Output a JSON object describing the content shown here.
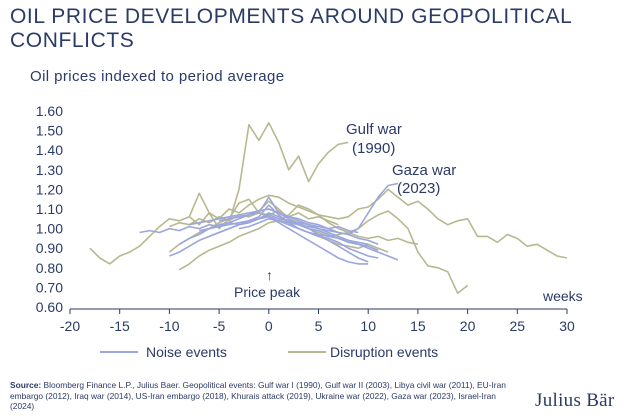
{
  "chart_data": {
    "type": "line",
    "title": "OIL PRICE DEVELOPMENTS AROUND GEOPOLITICAL CONFLICTS",
    "subtitle": "Oil prices indexed to period average",
    "xlabel": "weeks",
    "ylabel": "",
    "xlim": [
      -20,
      30
    ],
    "ylim": [
      0.6,
      1.6
    ],
    "xticks": [
      -20,
      -15,
      -10,
      -5,
      0,
      5,
      10,
      15,
      20,
      25,
      30
    ],
    "yticks": [
      0.6,
      0.7,
      0.8,
      0.9,
      1.0,
      1.1,
      1.2,
      1.3,
      1.4,
      1.5,
      1.6
    ],
    "grid": false,
    "legend": "bottom",
    "legend_entries": [
      {
        "label": "Noise events",
        "color": "#9ba6dc"
      },
      {
        "label": "Disruption events",
        "color": "#b8b890"
      }
    ],
    "annotations": {
      "gulf_war": [
        "Gulf war",
        "(1990)"
      ],
      "gaza_war": [
        "Gaza war",
        "(2023)"
      ],
      "price_peak": "Price peak",
      "price_peak_arrow": "↑"
    },
    "series": [
      {
        "group": "disruption",
        "x": [
          -18,
          -17,
          -16,
          -15,
          -14,
          -13,
          -12,
          -11,
          -10,
          -9,
          -8,
          -7,
          -6,
          -5,
          -4,
          -3,
          -2,
          -1,
          0,
          1,
          2,
          3,
          4,
          5,
          6,
          7,
          8,
          9,
          10,
          11,
          12,
          13,
          14,
          15,
          16,
          17,
          18,
          19,
          20,
          21,
          22,
          23,
          24,
          25,
          26,
          27,
          28,
          29,
          30
        ],
        "y": [
          0.9,
          0.85,
          0.82,
          0.86,
          0.88,
          0.91,
          0.96,
          1.01,
          1.05,
          1.04,
          1.06,
          1.02,
          1.08,
          1.05,
          1.1,
          1.08,
          1.12,
          1.15,
          1.17,
          1.16,
          1.13,
          1.11,
          1.09,
          1.07,
          1.06,
          1.05,
          1.06,
          1.1,
          1.11,
          1.15,
          1.2,
          1.16,
          1.12,
          1.14,
          1.1,
          1.05,
          1.02,
          1.04,
          1.05,
          0.96,
          0.96,
          0.93,
          0.97,
          0.95,
          0.91,
          0.92,
          0.89,
          0.86,
          0.85
        ]
      },
      {
        "group": "disruption",
        "x": [
          -10,
          -9,
          -8,
          -7,
          -6,
          -5,
          -4,
          -3,
          -2,
          -1,
          0,
          1,
          2,
          3,
          4,
          5,
          6,
          7,
          8,
          9,
          10,
          11,
          12,
          13,
          14,
          15,
          16,
          17,
          18,
          19,
          20
        ],
        "y": [
          0.88,
          0.92,
          0.95,
          0.98,
          1.0,
          1.03,
          1.05,
          1.06,
          1.07,
          1.09,
          1.14,
          1.1,
          1.05,
          1.03,
          1.0,
          0.98,
          0.96,
          0.97,
          0.98,
          1.0,
          1.04,
          1.07,
          1.09,
          1.05,
          1.0,
          0.88,
          0.81,
          0.8,
          0.78,
          0.67,
          0.71
        ]
      },
      {
        "group": "disruption",
        "x": [
          -9,
          -8,
          -7,
          -6,
          -5,
          -4,
          -3,
          -2,
          -1,
          0,
          1,
          2,
          3,
          4,
          5,
          6,
          7,
          8,
          9,
          10,
          11,
          12
        ],
        "y": [
          0.79,
          0.82,
          0.86,
          0.89,
          0.91,
          0.93,
          0.96,
          0.98,
          1.0,
          1.03,
          1.04,
          1.02,
          1.0,
          0.98,
          0.96,
          0.94,
          0.92,
          0.91,
          0.9,
          0.92,
          0.9,
          0.88
        ]
      },
      {
        "group": "disruption",
        "x": [
          -10,
          -9,
          -8,
          -7,
          -6,
          -5,
          -4,
          -3,
          -2,
          -1,
          0,
          1,
          2,
          3,
          4,
          5,
          6,
          7
        ],
        "y": [
          1.01,
          1.03,
          1.02,
          1.05,
          1.03,
          1.06,
          1.04,
          1.07,
          1.06,
          1.08,
          1.07,
          1.09,
          1.06,
          1.08,
          1.05,
          1.06,
          1.04,
          1.02
        ]
      },
      {
        "group": "disruption",
        "x": [
          -8,
          -7,
          -6,
          -5,
          -4,
          -3,
          -2,
          -1,
          0,
          1,
          2,
          3,
          4,
          5,
          6,
          7,
          8,
          9,
          10,
          11,
          12,
          13,
          14,
          15
        ],
        "y": [
          1.06,
          1.18,
          1.08,
          1.0,
          1.05,
          1.13,
          1.15,
          1.08,
          1.06,
          1.04,
          1.07,
          1.12,
          1.1,
          1.07,
          1.03,
          1.0,
          0.98,
          0.96,
          0.95,
          0.96,
          0.94,
          0.95,
          0.93,
          0.92
        ]
      },
      {
        "group": "disruption",
        "x": [
          -4,
          -3,
          -2,
          -1,
          0,
          1,
          2,
          3,
          4,
          5,
          6,
          7,
          8
        ],
        "y": [
          1.03,
          1.2,
          1.53,
          1.45,
          1.54,
          1.44,
          1.3,
          1.37,
          1.24,
          1.33,
          1.39,
          1.43,
          1.44
        ]
      },
      {
        "group": "noise",
        "x": [
          -13,
          -12,
          -11,
          -10,
          -9,
          -8,
          -7,
          -6,
          -5,
          -4,
          -3,
          -2,
          -1,
          0,
          1,
          2,
          3,
          4,
          5,
          6,
          7,
          8,
          9,
          10,
          11,
          12,
          13
        ],
        "y": [
          0.98,
          0.99,
          0.98,
          1.0,
          0.99,
          1.01,
          1.0,
          1.02,
          1.01,
          1.03,
          1.02,
          1.03,
          1.05,
          1.07,
          1.05,
          1.04,
          1.02,
          1.0,
          0.99,
          0.97,
          0.95,
          0.93,
          0.92,
          0.9,
          0.88,
          0.86,
          0.84
        ]
      },
      {
        "group": "noise",
        "x": [
          -10,
          -9,
          -8,
          -7,
          -6,
          -5,
          -4,
          -3,
          -2,
          -1,
          0,
          1,
          2,
          3,
          4,
          5,
          6,
          7,
          8,
          9,
          10,
          11
        ],
        "y": [
          0.86,
          0.88,
          0.91,
          0.94,
          0.96,
          0.98,
          1.0,
          1.02,
          1.04,
          1.06,
          1.12,
          1.07,
          1.03,
          1.0,
          0.98,
          0.96,
          0.95,
          0.93,
          0.9,
          0.88,
          0.86,
          0.85
        ]
      },
      {
        "group": "noise",
        "x": [
          -9,
          -8,
          -7,
          -6,
          -5,
          -4,
          -3,
          -2,
          -1,
          0,
          1,
          2,
          3,
          4,
          5,
          6,
          7,
          8,
          9,
          10
        ],
        "y": [
          0.92,
          0.95,
          0.97,
          1.0,
          1.02,
          1.03,
          1.05,
          1.07,
          1.09,
          1.1,
          1.08,
          1.05,
          1.02,
          1.0,
          0.97,
          0.94,
          0.91,
          0.88,
          0.85,
          0.83
        ]
      },
      {
        "group": "noise",
        "x": [
          -8,
          -7,
          -6,
          -5,
          -4,
          -3,
          -2,
          -1,
          0,
          1,
          2,
          3,
          4,
          5,
          6,
          7,
          8,
          9,
          10,
          11
        ],
        "y": [
          1.02,
          1.03,
          1.04,
          1.05,
          1.06,
          1.07,
          1.08,
          1.09,
          1.1,
          1.08,
          1.06,
          1.04,
          1.02,
          1.0,
          0.98,
          0.96,
          0.94,
          0.92,
          0.91,
          0.89
        ]
      },
      {
        "group": "noise",
        "x": [
          -7,
          -6,
          -5,
          -4,
          -3,
          -2,
          -1,
          0,
          1,
          2,
          3,
          4,
          5,
          6,
          7,
          8,
          9,
          10
        ],
        "y": [
          0.99,
          1.0,
          1.01,
          1.02,
          1.03,
          1.04,
          1.05,
          1.06,
          1.04,
          1.02,
          1.0,
          0.98,
          0.97,
          0.96,
          0.95,
          0.94,
          0.93,
          0.92
        ]
      },
      {
        "group": "noise",
        "x": [
          -6,
          -5,
          -4,
          -3,
          -2,
          -1,
          0,
          1,
          2,
          3,
          4,
          5,
          6,
          7,
          8,
          9
        ],
        "y": [
          0.96,
          0.98,
          1.0,
          1.02,
          1.03,
          1.05,
          1.08,
          1.06,
          1.04,
          1.03,
          1.02,
          1.01,
          1.0,
          1.01,
          0.99,
          0.98
        ]
      },
      {
        "group": "noise",
        "x": [
          -5,
          -4,
          -3,
          -2,
          -1,
          0,
          1,
          2,
          3,
          4,
          5,
          6,
          7,
          8,
          9,
          10,
          11
        ],
        "y": [
          1.04,
          1.05,
          1.06,
          1.07,
          1.08,
          1.16,
          1.08,
          1.06,
          1.05,
          1.03,
          1.02,
          1.0,
          0.98,
          0.97,
          0.95,
          0.94,
          0.92
        ]
      },
      {
        "group": "noise",
        "x": [
          -3,
          -2,
          -1,
          0,
          1,
          2,
          3,
          4,
          5,
          6,
          7,
          8,
          9,
          10,
          11,
          12,
          13
        ],
        "y": [
          1.0,
          1.01,
          1.03,
          1.05,
          1.04,
          1.03,
          1.02,
          1.01,
          1.0,
          0.99,
          0.98,
          0.97,
          1.0,
          1.08,
          1.16,
          1.22,
          1.23
        ]
      },
      {
        "group": "noise",
        "x": [
          0,
          1,
          2,
          3,
          4,
          5,
          6,
          7,
          8,
          9,
          10
        ],
        "y": [
          1.06,
          1.03,
          1.0,
          0.97,
          0.94,
          0.91,
          0.88,
          0.85,
          0.83,
          0.82,
          0.82
        ]
      }
    ]
  },
  "source": {
    "label": "Source:",
    "text": "Bloomberg Finance L.P., Julius Baer. Geopolitical events: Gulf war I (1990), Gulf war II (2003), Libya civil war (2011), EU-Iran embargo (2012), Iraq war (2014), US-Iran embargo (2018), Khurais attack (2019), Ukraine war (2022), Gaza war (2023), Israel-Iran (2024)"
  },
  "brand": "Julius Bär"
}
